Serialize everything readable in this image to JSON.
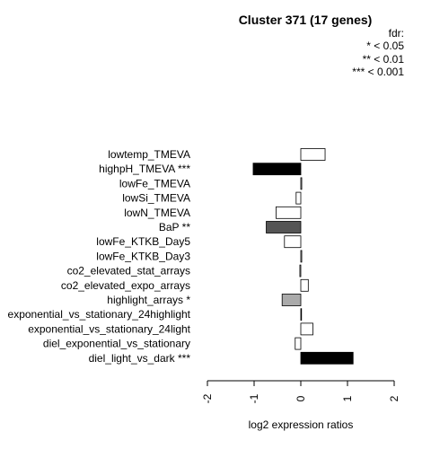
{
  "chart_data": {
    "type": "bar",
    "orientation": "horizontal",
    "title": "Cluster 371 (17 genes)",
    "xlabel": "log2 expression ratios",
    "ylabel": "",
    "xlim": [
      -2,
      2
    ],
    "xticks": [
      "-2",
      "-1",
      "0",
      "1",
      "2"
    ],
    "legend": {
      "title": "fdr:",
      "entries": [
        "* < 0.05",
        "** < 0.01",
        "*** < 0.001"
      ],
      "placement": "top-right"
    },
    "categories": [
      "lowtemp_TMEVA",
      "highpH_TMEVA ***",
      "lowFe_TMEVA",
      "lowSi_TMEVA",
      "lowN_TMEVA",
      "BaP **",
      "lowFe_KTKB_Day5",
      "lowFe_KTKB_Day3",
      "co2_elevated_stat_arrays",
      "co2_elevated_expo_arrays",
      "highlight_arrays *",
      "exponential_vs_stationary_24highlight",
      "exponential_vs_stationary_24light",
      "diel_exponential_vs_stationary",
      "diel_light_vs_dark ***"
    ],
    "values": [
      0.52,
      -1.02,
      0.02,
      -0.1,
      -0.53,
      -0.74,
      -0.35,
      0.02,
      -0.02,
      0.16,
      -0.4,
      0.0,
      0.26,
      -0.12,
      1.12
    ],
    "bar_colors": [
      "#ffffff",
      "#000000",
      "#ffffff",
      "#ffffff",
      "#ffffff",
      "#555555",
      "#ffffff",
      "#ffffff",
      "#ffffff",
      "#ffffff",
      "#aaaaaa",
      "#ffffff",
      "#ffffff",
      "#ffffff",
      "#000000"
    ]
  }
}
